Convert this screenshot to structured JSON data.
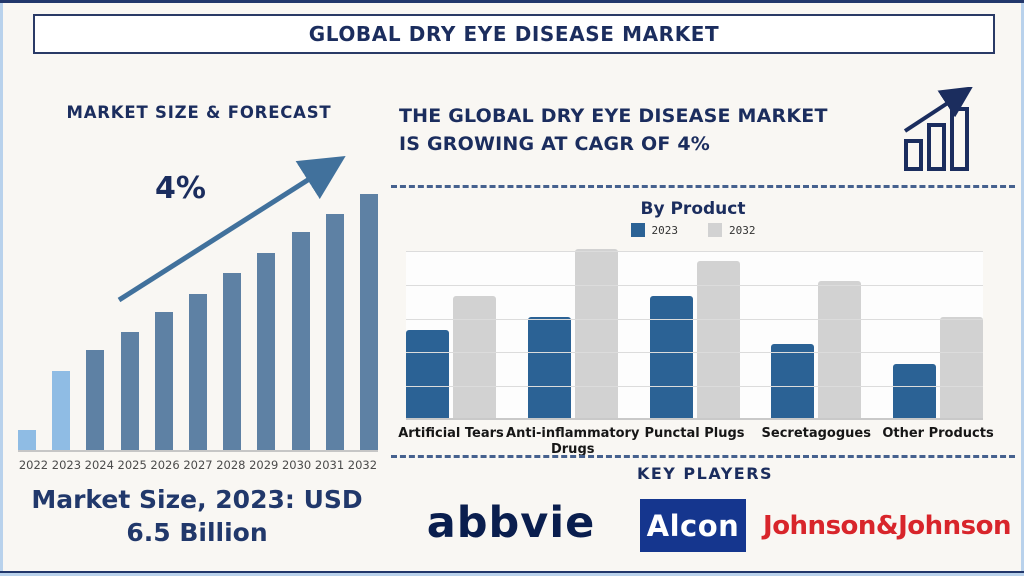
{
  "page": {
    "title": "GLOBAL DRY EYE DISEASE MARKET"
  },
  "colors": {
    "navy": "#1b2d5e",
    "steel_bar": "#5e81a4",
    "highlight_bar": "#8fbce4",
    "arrow": "#41719c",
    "product_2023_bar": "#2b6295",
    "product_2032_bar": "#d2d2d2",
    "dashed_divider": "#46618e",
    "alcon_blue": "#15368e",
    "jnj_red": "#d8252b",
    "abbvie_navy": "#0a1e4e",
    "background": "#f9f7f3"
  },
  "left": {
    "section_title": "MARKET SIZE & FORECAST",
    "cagr_label": "4%",
    "caption": "Market Size, 2023: USD 6.5 Billion"
  },
  "right": {
    "headline_line1": "THE GLOBAL DRY EYE DISEASE MARKET",
    "headline_line2": "IS GROWING AT CAGR OF 4%",
    "key_players_title": "KEY PLAYERS",
    "logos": {
      "abbvie": "abbvie",
      "alcon": "Alcon",
      "jnj": "Johnson&Johnson"
    }
  },
  "chart_data": [
    {
      "type": "bar",
      "title": "MARKET SIZE & FORECAST",
      "xlabel": "",
      "ylabel": "",
      "annotation": "4% CAGR growth arrow",
      "categories": [
        "2022",
        "2023",
        "2024",
        "2025",
        "2026",
        "2027",
        "2028",
        "2029",
        "2030",
        "2031",
        "2032"
      ],
      "relative_height_pct": [
        8,
        31,
        39,
        46,
        54,
        61,
        69,
        77,
        85,
        92,
        100
      ],
      "highlight_categories": [
        "2022",
        "2023"
      ],
      "known_values": {
        "2023": "USD 6.5 Billion"
      },
      "grid": false,
      "legend_position": "none"
    },
    {
      "type": "bar",
      "title": "By Product",
      "xlabel": "",
      "ylabel": "",
      "categories": [
        "Artificial Tears",
        "Anti-inflammatory Drugs",
        "Punctal Plugs",
        "Secretagogues",
        "Other Products"
      ],
      "series": [
        {
          "name": "2023",
          "values": [
            2.6,
            3.0,
            3.6,
            2.2,
            1.6
          ]
        },
        {
          "name": "2032",
          "values": [
            3.6,
            5.0,
            4.65,
            4.05,
            3.0
          ]
        }
      ],
      "units": "relative (gridline = 1 unit, unlabeled axis)",
      "ylim": [
        0,
        5
      ],
      "grid": true,
      "legend_position": "top"
    }
  ]
}
